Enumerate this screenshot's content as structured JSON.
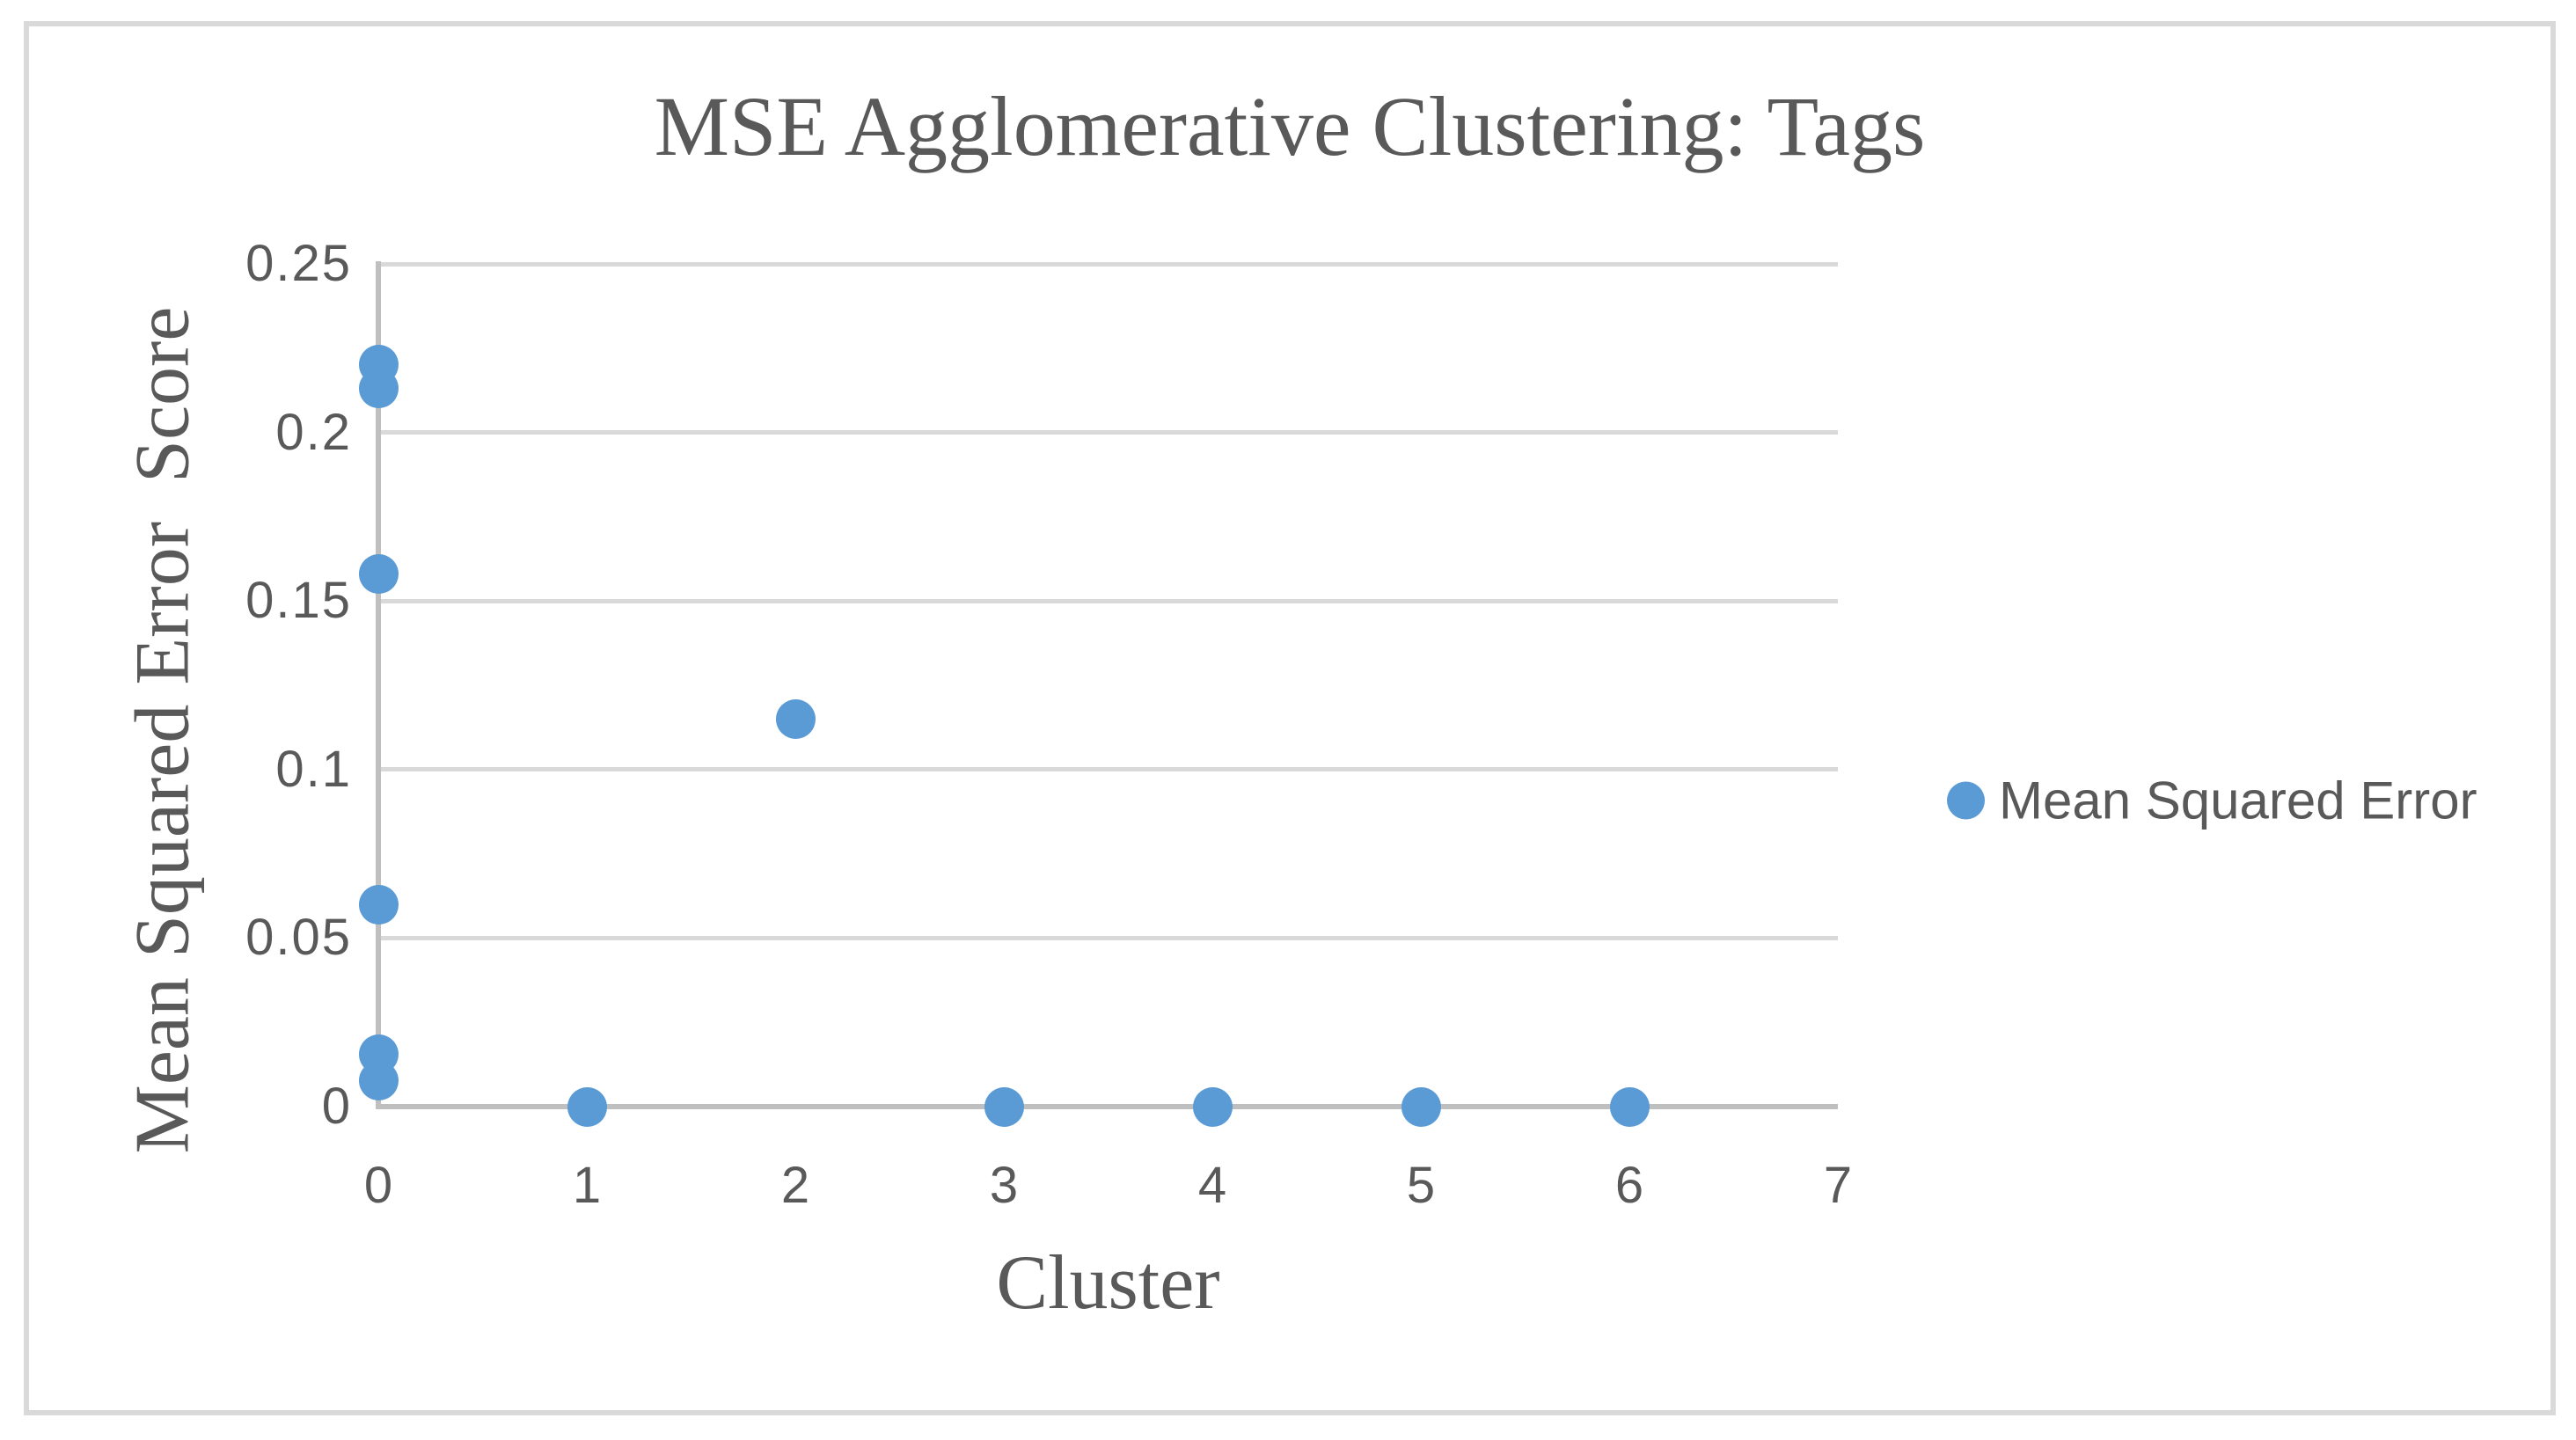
{
  "chart_data": {
    "type": "scatter",
    "title": "MSE Agglomerative Clustering: Tags",
    "xlabel": "Cluster",
    "ylabel": "Mean Squared Error  Score",
    "xlim": [
      0,
      7
    ],
    "ylim": [
      0,
      0.25
    ],
    "x_tick_values": [
      0,
      1,
      2,
      3,
      4,
      5,
      6,
      7
    ],
    "x_tick_labels": [
      "0",
      "1",
      "2",
      "3",
      "4",
      "5",
      "6",
      "7"
    ],
    "y_tick_values": [
      0,
      0.05,
      0.1,
      0.15,
      0.2,
      0.25
    ],
    "y_tick_labels": [
      "0",
      "0.05",
      "0.1",
      "0.15",
      "0.2",
      "0.25"
    ],
    "grid": "horizontal",
    "legend": {
      "label": "Mean Squared Error",
      "position": "right"
    },
    "series": [
      {
        "name": "Mean Squared Error",
        "color": "#5B9BD5",
        "points": [
          {
            "x": 0,
            "y": 0.22
          },
          {
            "x": 0,
            "y": 0.213
          },
          {
            "x": 0,
            "y": 0.158
          },
          {
            "x": 0,
            "y": 0.06
          },
          {
            "x": 0,
            "y": 0.0155
          },
          {
            "x": 0,
            "y": 0.0078
          },
          {
            "x": 1,
            "y": 0
          },
          {
            "x": 2,
            "y": 0.115
          },
          {
            "x": 3,
            "y": 0
          },
          {
            "x": 4,
            "y": 0
          },
          {
            "x": 5,
            "y": 0
          },
          {
            "x": 6,
            "y": 0
          }
        ]
      }
    ]
  },
  "colors": {
    "accent_blue": "#5B9BD5",
    "text_gray": "#595959",
    "gridline": "#D9D9D9",
    "axis_line": "#BFBFBF",
    "frame_border": "#D9D9D9"
  }
}
